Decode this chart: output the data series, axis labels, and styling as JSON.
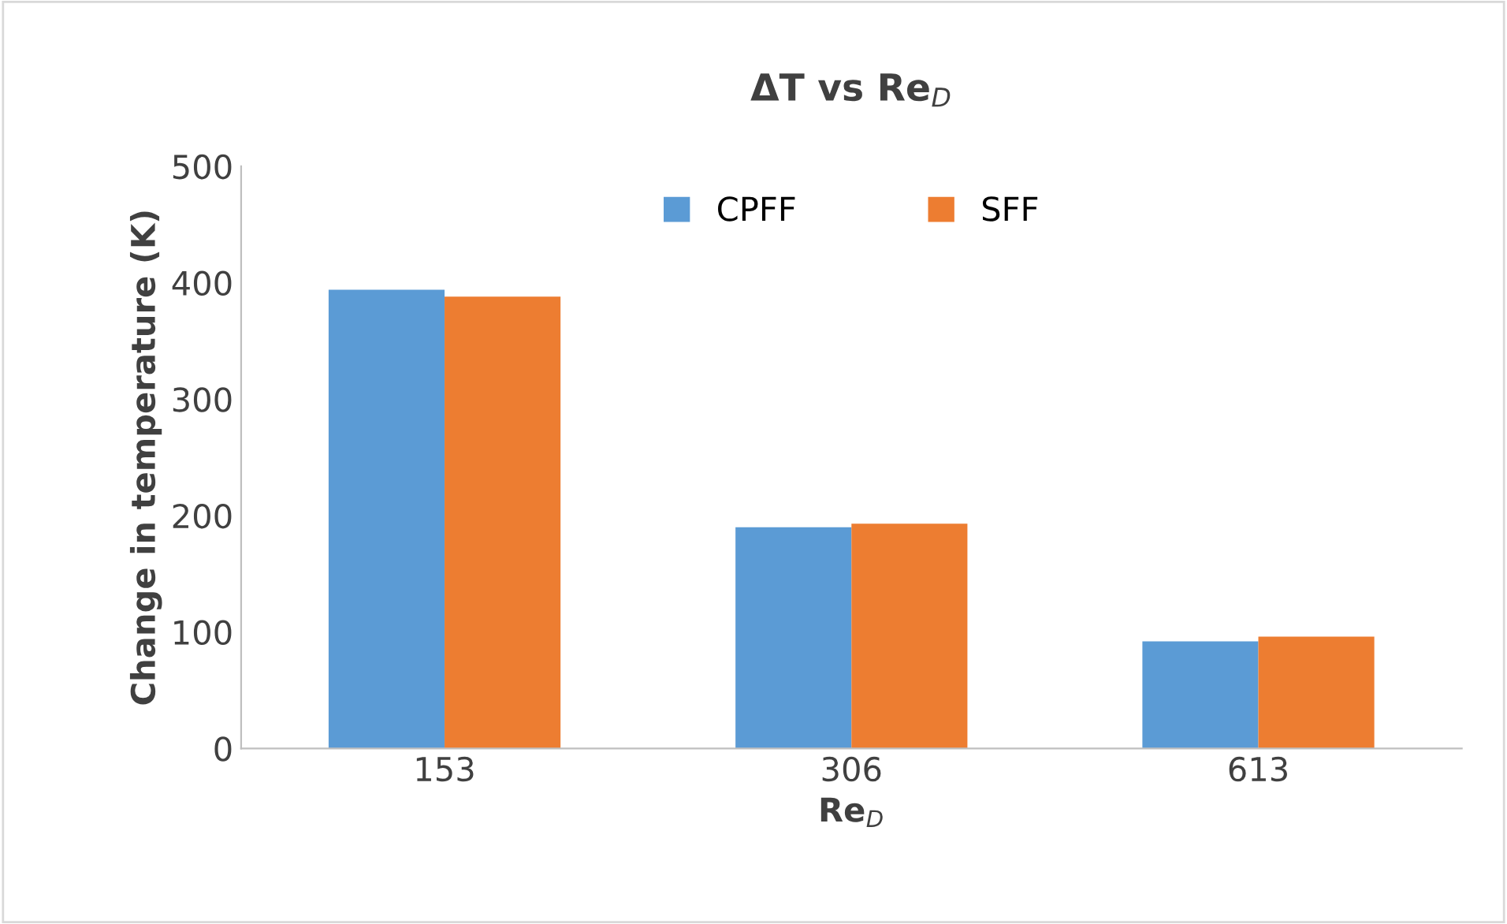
{
  "chart_data": {
    "type": "bar",
    "title": "ΔT vs Re$_{D}$",
    "xlabel": "Re$_{D}$",
    "ylabel": "Change in temperature (K)",
    "categories": [
      "153",
      "306",
      "613"
    ],
    "series": [
      {
        "name": "CPFF",
        "color": "#5b9bd5",
        "values": [
          394,
          190,
          92
        ]
      },
      {
        "name": "SFF",
        "color": "#ed7d31",
        "values": [
          388,
          193,
          96
        ]
      }
    ],
    "ylim": [
      0,
      500
    ],
    "yticks": [
      0,
      100,
      200,
      300,
      400,
      500
    ],
    "grid": false,
    "legend": "top"
  }
}
